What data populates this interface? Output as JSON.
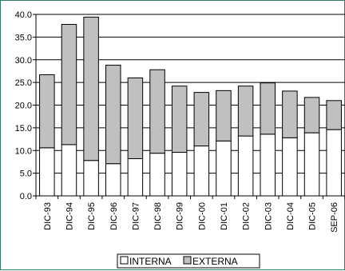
{
  "chart_data": {
    "type": "bar",
    "stacked": true,
    "categories": [
      "DIC-93",
      "DIC-94",
      "DIC-95",
      "DIC-96",
      "DIC-97",
      "DIC-98",
      "DIC-99",
      "DIC-00",
      "DIC-01",
      "DIC-02",
      "DIC-03",
      "DIC-04",
      "DIC-05",
      "SEP-06"
    ],
    "series": [
      {
        "name": "INTERNA",
        "color": "#ffffff",
        "values": [
          10.6,
          11.3,
          7.8,
          7.1,
          8.2,
          9.4,
          9.6,
          11.0,
          12.1,
          13.2,
          13.6,
          12.8,
          13.9,
          14.6
        ]
      },
      {
        "name": "EXTERNA",
        "color": "#c0c0c0",
        "values": [
          16.1,
          26.5,
          31.6,
          21.7,
          17.8,
          18.4,
          14.6,
          11.8,
          11.1,
          11.0,
          11.3,
          10.3,
          7.8,
          6.4
        ]
      }
    ],
    "ylim": [
      0,
      40
    ],
    "yticks": [
      "0.0",
      "5.0",
      "10.0",
      "15.0",
      "20.0",
      "25.0",
      "30.0",
      "35.0",
      "40.0"
    ],
    "grid": true,
    "legend": "bottom"
  }
}
